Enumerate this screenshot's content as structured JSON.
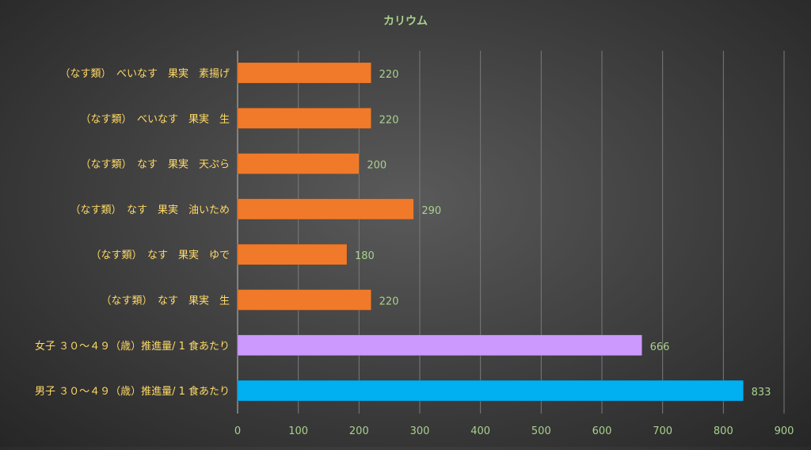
{
  "chart_data": {
    "type": "bar",
    "orientation": "horizontal",
    "title": "カリウム",
    "categories": [
      "（なす類）　べいなす　果実　素揚げ",
      "（なす類）　べいなす　果実　生",
      "（なす類）　なす　果実　天ぷら",
      "（なす類）　なす　果実　油いため",
      "（なす類）　なす　果実　ゆで",
      "（なす類）　なす　果実　生",
      "女子 ３０～４９（歳）推進量/ 1 食あたり",
      "男子 ３０～４９（歳）推進量/ 1 食あたり"
    ],
    "values": [
      220,
      220,
      200,
      290,
      180,
      220,
      666,
      833
    ],
    "bar_colors": [
      "#f07a2a",
      "#f07a2a",
      "#f07a2a",
      "#f07a2a",
      "#f07a2a",
      "#f07a2a",
      "#cc99ff",
      "#00b0f0"
    ],
    "xlim": [
      0,
      900
    ],
    "xticks": [
      0,
      100,
      200,
      300,
      400,
      500,
      600,
      700,
      800,
      900
    ],
    "grid": true,
    "legend": "none",
    "colors": {
      "title": "#a9d18e",
      "category_label": "#ffd966",
      "value_label": "#a9d18e",
      "tick_label": "#a9d18e",
      "grid": "#7a7a7a"
    }
  }
}
